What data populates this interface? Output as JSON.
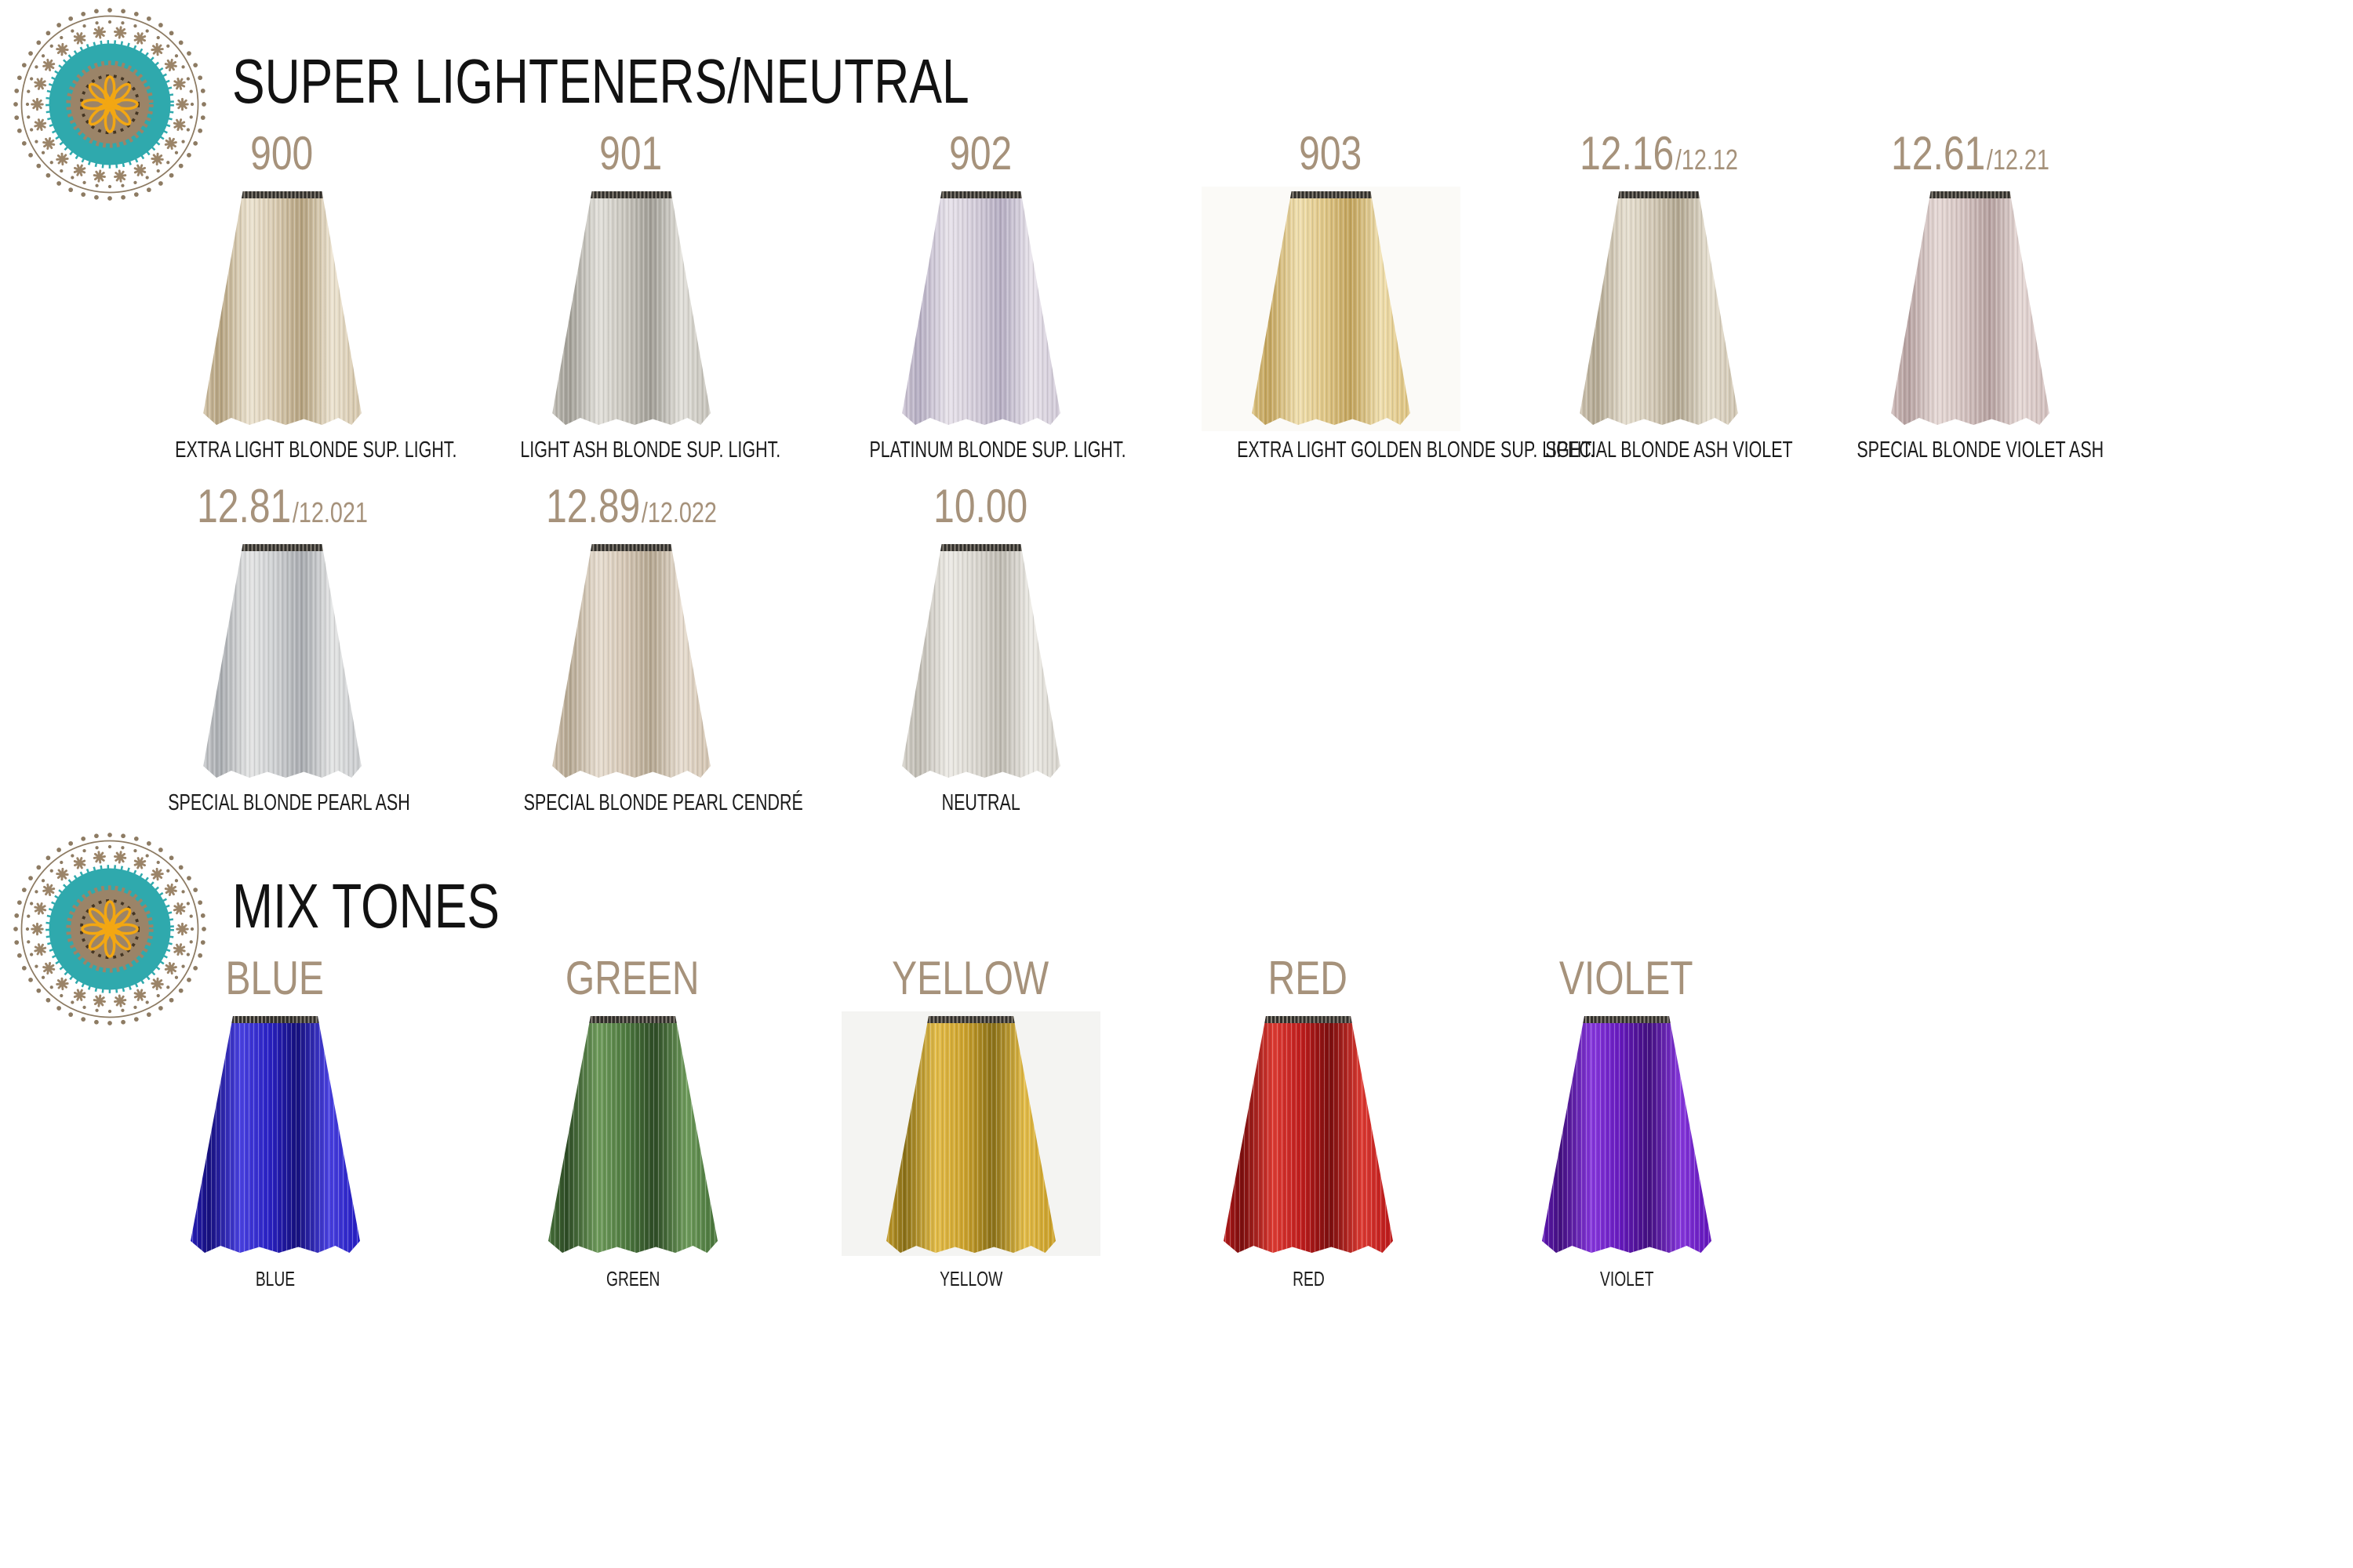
{
  "brand": {
    "logo_name": "mandala-logo",
    "teal": "#2fa9ad",
    "taupe": "#9b8468",
    "orange": "#f3a712",
    "dark_brown": "#443523"
  },
  "palette": {
    "shade_label_color": "#a6927b",
    "title_color": "#121212",
    "caption_color": "#1b1b1b"
  },
  "sections": [
    {
      "title": "SUPER LIGHTENERS/NEUTRAL",
      "rows": [
        [
          {
            "code": "900",
            "alt_code": "",
            "label": "EXTRA LIGHT BLONDE SUP. LIGHT.",
            "colors": {
              "light": "#ece3d0",
              "base": "#d8cab0",
              "dark": "#b4a17e"
            },
            "box_bg": ""
          },
          {
            "code": "901",
            "alt_code": "",
            "label": "LIGHT ASH BLONDE SUP. LIGHT.",
            "colors": {
              "light": "#e2e0da",
              "base": "#c9c6be",
              "dark": "#a19e96"
            },
            "box_bg": ""
          },
          {
            "code": "902",
            "alt_code": "",
            "label": "PLATINUM BLONDE SUP. LIGHT.",
            "colors": {
              "light": "#e7e2ea",
              "base": "#d4cdda",
              "dark": "#b5adc2"
            },
            "box_bg": ""
          },
          {
            "code": "903",
            "alt_code": "",
            "label": "EXTRA LIGHT GOLDEN BLONDE SUP. LIGHT.",
            "colors": {
              "light": "#f0dfae",
              "base": "#e0c787",
              "dark": "#c2a35c"
            },
            "box_bg": "#fbfaf7"
          },
          {
            "code": "12.16",
            "alt_code": "/12.12",
            "label": "SPECIAL BLONDE ASH VIOLET",
            "colors": {
              "light": "#e6dfd0",
              "base": "#d3c9b6",
              "dark": "#b1a690"
            },
            "box_bg": ""
          },
          {
            "code": "12.61",
            "alt_code": "/12.21",
            "label": "SPECIAL BLONDE VIOLET ASH",
            "colors": {
              "light": "#e6d9d6",
              "base": "#d4c2c0",
              "dark": "#b5a09f"
            },
            "box_bg": ""
          }
        ],
        [
          {
            "code": "12.81",
            "alt_code": "/12.021",
            "label": "SPECIAL BLONDE PEARL ASH",
            "colors": {
              "light": "#e3e4e4",
              "base": "#cdcfd1",
              "dark": "#a8abaf"
            },
            "box_bg": ""
          },
          {
            "code": "12.89",
            "alt_code": "/12.022",
            "label": "SPECIAL BLONDE PEARL CENDRÉ",
            "colors": {
              "light": "#e7ddd0",
              "base": "#d5c7b5",
              "dark": "#b4a690"
            },
            "box_bg": ""
          },
          {
            "code": "10.00",
            "alt_code": "",
            "label": "NEUTRAL",
            "colors": {
              "light": "#eceae5",
              "base": "#dbd8d1",
              "dark": "#bebab1"
            },
            "box_bg": ""
          }
        ]
      ]
    },
    {
      "title": "MIX TONES",
      "rows": [
        [
          {
            "code": "BLUE",
            "alt_code": "",
            "label": "BLUE",
            "colors": {
              "light": "#4a42e2",
              "base": "#2a22c6",
              "dark": "#16107e"
            },
            "box_bg": ""
          },
          {
            "code": "GREEN",
            "alt_code": "",
            "label": "GREEN",
            "colors": {
              "light": "#6f9c5c",
              "base": "#4e7a40",
              "dark": "#2e4c26"
            },
            "box_bg": ""
          },
          {
            "code": "YELLOW",
            "alt_code": "",
            "label": "YELLOW",
            "colors": {
              "light": "#e3bc49",
              "base": "#cda32d",
              "dark": "#8a7018"
            },
            "box_bg": "#f4f4f2"
          },
          {
            "code": "RED",
            "alt_code": "",
            "label": "RED",
            "colors": {
              "light": "#dd3b33",
              "base": "#c01d1d",
              "dark": "#7c0e0e"
            },
            "box_bg": ""
          },
          {
            "code": "VIOLET",
            "alt_code": "",
            "label": "VIOLET",
            "colors": {
              "light": "#8637dd",
              "base": "#671ac0",
              "dark": "#431080"
            },
            "box_bg": ""
          }
        ]
      ]
    }
  ]
}
